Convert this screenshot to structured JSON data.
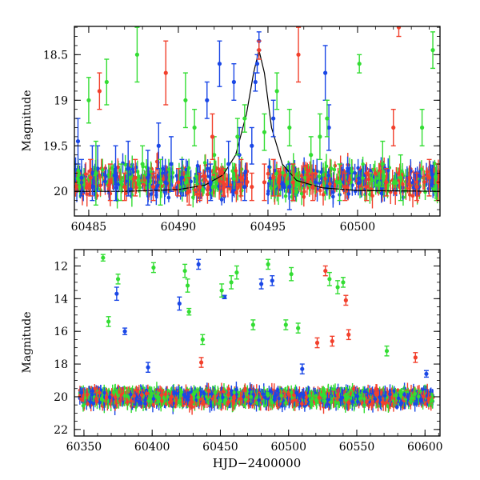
{
  "chart_data": [
    {
      "type": "scatter",
      "panel": "top",
      "title": "",
      "xlabel": "",
      "ylabel": "Magnitude",
      "xlim": [
        60484.2,
        60504.6
      ],
      "ylim": [
        20.27,
        18.19
      ],
      "y_inverted": true,
      "grid": false,
      "legend": "none",
      "x_ticks": [
        60485,
        60490,
        60495,
        60500
      ],
      "x_tick_labels": [
        "60485",
        "60490",
        "60495",
        "60500"
      ],
      "y_ticks": [
        18.5,
        19,
        19.5,
        20
      ],
      "y_tick_labels": [
        "18.5",
        "19",
        "19.5",
        "20"
      ],
      "series": [
        {
          "color": "#1a47e6",
          "points": [
            {
              "x": 60484.4,
              "y": 19.45,
              "err": 0.25
            },
            {
              "x": 60484.6,
              "y": 19.85,
              "err": 0.2
            },
            {
              "x": 60485.2,
              "y": 19.8,
              "err": 0.3
            },
            {
              "x": 60485.5,
              "y": 19.75,
              "err": 0.25
            },
            {
              "x": 60486.5,
              "y": 19.8,
              "err": 0.3
            },
            {
              "x": 60487.2,
              "y": 19.75,
              "err": 0.3
            },
            {
              "x": 60488.3,
              "y": 19.85,
              "err": 0.3
            },
            {
              "x": 60488.9,
              "y": 19.5,
              "err": 0.25
            },
            {
              "x": 60489.6,
              "y": 19.7,
              "err": 0.3
            },
            {
              "x": 60490.2,
              "y": 19.85,
              "err": 0.2
            },
            {
              "x": 60491.6,
              "y": 19.0,
              "err": 0.2
            },
            {
              "x": 60491.8,
              "y": 19.9,
              "err": 0.2
            },
            {
              "x": 60492.3,
              "y": 18.6,
              "err": 0.25
            },
            {
              "x": 60492.8,
              "y": 19.7,
              "err": 0.25
            },
            {
              "x": 60493.1,
              "y": 18.8,
              "err": 0.2
            },
            {
              "x": 60493.4,
              "y": 19.6,
              "err": 0.3
            },
            {
              "x": 60493.7,
              "y": 19.95,
              "err": 0.15
            },
            {
              "x": 60494.1,
              "y": 19.5,
              "err": 0.2
            },
            {
              "x": 60494.3,
              "y": 18.8,
              "err": 0.1
            },
            {
              "x": 60494.4,
              "y": 18.6,
              "err": 0.1
            },
            {
              "x": 60494.5,
              "y": 18.35,
              "err": 0.1
            },
            {
              "x": 60495.3,
              "y": 19.2,
              "err": 0.2
            },
            {
              "x": 60496.2,
              "y": 19.95,
              "err": 0.25
            },
            {
              "x": 60498.2,
              "y": 18.7,
              "err": 0.3
            },
            {
              "x": 60498.4,
              "y": 19.3,
              "err": 0.25
            }
          ]
        },
        {
          "color": "#33dd33",
          "points": [
            {
              "x": 60485.0,
              "y": 19.0,
              "err": 0.25
            },
            {
              "x": 60485.4,
              "y": 19.8,
              "err": 0.35
            },
            {
              "x": 60486.0,
              "y": 18.8,
              "err": 0.25
            },
            {
              "x": 60486.8,
              "y": 19.9,
              "err": 0.2
            },
            {
              "x": 60487.7,
              "y": 18.5,
              "err": 0.3
            },
            {
              "x": 60488.0,
              "y": 19.7,
              "err": 0.2
            },
            {
              "x": 60489.0,
              "y": 19.9,
              "err": 0.25
            },
            {
              "x": 60490.4,
              "y": 19.0,
              "err": 0.3
            },
            {
              "x": 60490.9,
              "y": 19.3,
              "err": 0.2
            },
            {
              "x": 60492.0,
              "y": 19.6,
              "err": 0.2
            },
            {
              "x": 60493.3,
              "y": 19.4,
              "err": 0.2
            },
            {
              "x": 60493.7,
              "y": 19.2,
              "err": 0.15
            },
            {
              "x": 60494.8,
              "y": 19.35,
              "err": 0.2
            },
            {
              "x": 60495.5,
              "y": 18.9,
              "err": 0.2
            },
            {
              "x": 60496.2,
              "y": 19.3,
              "err": 0.2
            },
            {
              "x": 60497.4,
              "y": 19.6,
              "err": 0.2
            },
            {
              "x": 60497.9,
              "y": 19.4,
              "err": 0.25
            },
            {
              "x": 60498.3,
              "y": 19.2,
              "err": 0.2
            },
            {
              "x": 60499.0,
              "y": 19.9,
              "err": 0.2
            },
            {
              "x": 60500.1,
              "y": 18.6,
              "err": 0.1
            },
            {
              "x": 60501.4,
              "y": 19.7,
              "err": 0.25
            },
            {
              "x": 60502.4,
              "y": 19.85,
              "err": 0.25
            },
            {
              "x": 60503.6,
              "y": 19.3,
              "err": 0.2
            },
            {
              "x": 60504.2,
              "y": 18.45,
              "err": 0.2
            },
            {
              "x": 60504.4,
              "y": 19.9,
              "err": 0.2
            }
          ]
        },
        {
          "color": "#f2402c",
          "points": [
            {
              "x": 60485.1,
              "y": 19.85,
              "err": 0.2
            },
            {
              "x": 60485.6,
              "y": 18.9,
              "err": 0.2
            },
            {
              "x": 60486.2,
              "y": 19.9,
              "err": 0.2
            },
            {
              "x": 60487.0,
              "y": 19.95,
              "err": 0.15
            },
            {
              "x": 60487.6,
              "y": 19.85,
              "err": 0.2
            },
            {
              "x": 60488.6,
              "y": 19.95,
              "err": 0.15
            },
            {
              "x": 60489.3,
              "y": 18.7,
              "err": 0.35
            },
            {
              "x": 60490.0,
              "y": 19.9,
              "err": 0.15
            },
            {
              "x": 60490.6,
              "y": 20.0,
              "err": 0.15
            },
            {
              "x": 60491.2,
              "y": 19.95,
              "err": 0.15
            },
            {
              "x": 60491.9,
              "y": 19.4,
              "err": 0.25
            },
            {
              "x": 60492.5,
              "y": 19.9,
              "err": 0.15
            },
            {
              "x": 60493.5,
              "y": 19.85,
              "err": 0.2
            },
            {
              "x": 60494.1,
              "y": 19.95,
              "err": 0.15
            },
            {
              "x": 60494.5,
              "y": 18.45,
              "err": 0.1
            },
            {
              "x": 60494.8,
              "y": 19.9,
              "err": 0.2
            },
            {
              "x": 60495.3,
              "y": 19.85,
              "err": 0.2
            },
            {
              "x": 60495.6,
              "y": 19.9,
              "err": 0.15
            },
            {
              "x": 60496.4,
              "y": 19.9,
              "err": 0.2
            },
            {
              "x": 60496.7,
              "y": 18.5,
              "err": 0.3
            },
            {
              "x": 60497.5,
              "y": 19.95,
              "err": 0.15
            },
            {
              "x": 60499.3,
              "y": 19.95,
              "err": 0.15
            },
            {
              "x": 60500.5,
              "y": 19.95,
              "err": 0.15
            },
            {
              "x": 60501.6,
              "y": 19.9,
              "err": 0.15
            },
            {
              "x": 60502.0,
              "y": 19.3,
              "err": 0.2
            },
            {
              "x": 60502.3,
              "y": 18.2,
              "err": 0.1
            },
            {
              "x": 60503.3,
              "y": 19.95,
              "err": 0.15
            },
            {
              "x": 60504.0,
              "y": 19.85,
              "err": 0.2
            },
            {
              "x": 60504.5,
              "y": 19.9,
              "err": 0.2
            }
          ]
        }
      ],
      "model_curve": {
        "color": "#000000",
        "x": [
          60484.2,
          60487.0,
          60490.0,
          60491.5,
          60492.5,
          60493.2,
          60493.8,
          60494.2,
          60494.5,
          60494.8,
          60495.2,
          60495.8,
          60496.6,
          60498.0,
          60500.0,
          60504.6
        ],
        "y": [
          20.0,
          20.0,
          19.98,
          19.93,
          19.82,
          19.6,
          19.15,
          18.7,
          18.45,
          18.7,
          19.3,
          19.7,
          19.88,
          19.96,
          19.99,
          20.0
        ]
      }
    },
    {
      "type": "scatter",
      "panel": "bottom",
      "title": "",
      "xlabel": "HJD−2400000",
      "ylabel": "Magnitude",
      "xlim": [
        60343,
        60611
      ],
      "ylim": [
        22.4,
        11.0
      ],
      "y_inverted": true,
      "grid": false,
      "legend": "none",
      "x_ticks": [
        60350,
        60400,
        60450,
        60500,
        60550,
        60600
      ],
      "x_tick_labels": [
        "60350",
        "60400",
        "60450",
        "60500",
        "60550",
        "60600"
      ],
      "y_ticks": [
        12,
        14,
        16,
        18,
        20,
        22
      ],
      "y_tick_labels": [
        "12",
        "14",
        "16",
        "18",
        "20",
        "22"
      ],
      "baseline_mag": 20.05,
      "series": [
        {
          "color": "#1a47e6",
          "points": [
            {
              "x": 60374,
              "y": 13.7,
              "err": 0.4
            },
            {
              "x": 60380,
              "y": 16.0,
              "err": 0.2
            },
            {
              "x": 60397,
              "y": 18.2,
              "err": 0.3
            },
            {
              "x": 60420,
              "y": 14.3,
              "err": 0.4
            },
            {
              "x": 60434,
              "y": 11.9,
              "err": 0.3
            },
            {
              "x": 60453,
              "y": 13.9,
              "err": 0.1
            },
            {
              "x": 60480,
              "y": 13.1,
              "err": 0.3
            },
            {
              "x": 60488,
              "y": 12.9,
              "err": 0.3
            },
            {
              "x": 60510,
              "y": 18.3,
              "err": 0.3
            },
            {
              "x": 60601,
              "y": 18.6,
              "err": 0.2
            }
          ]
        },
        {
          "color": "#33dd33",
          "points": [
            {
              "x": 60364,
              "y": 11.5,
              "err": 0.2
            },
            {
              "x": 60368,
              "y": 15.4,
              "err": 0.3
            },
            {
              "x": 60375,
              "y": 12.8,
              "err": 0.3
            },
            {
              "x": 60401,
              "y": 12.1,
              "err": 0.3
            },
            {
              "x": 60424,
              "y": 12.3,
              "err": 0.4
            },
            {
              "x": 60426,
              "y": 13.2,
              "err": 0.4
            },
            {
              "x": 60427,
              "y": 14.8,
              "err": 0.2
            },
            {
              "x": 60437,
              "y": 16.5,
              "err": 0.3
            },
            {
              "x": 60451,
              "y": 13.5,
              "err": 0.4
            },
            {
              "x": 60458,
              "y": 13.0,
              "err": 0.4
            },
            {
              "x": 60462,
              "y": 12.4,
              "err": 0.4
            },
            {
              "x": 60474,
              "y": 15.6,
              "err": 0.3
            },
            {
              "x": 60485,
              "y": 11.9,
              "err": 0.3
            },
            {
              "x": 60498,
              "y": 15.6,
              "err": 0.3
            },
            {
              "x": 60502,
              "y": 12.5,
              "err": 0.4
            },
            {
              "x": 60507,
              "y": 15.8,
              "err": 0.3
            },
            {
              "x": 60530,
              "y": 12.8,
              "err": 0.4
            },
            {
              "x": 60536,
              "y": 13.3,
              "err": 0.4
            },
            {
              "x": 60540,
              "y": 13.0,
              "err": 0.3
            },
            {
              "x": 60572,
              "y": 17.2,
              "err": 0.3
            }
          ]
        },
        {
          "color": "#f2402c",
          "points": [
            {
              "x": 60436,
              "y": 17.9,
              "err": 0.3
            },
            {
              "x": 60521,
              "y": 16.7,
              "err": 0.3
            },
            {
              "x": 60527,
              "y": 12.3,
              "err": 0.3
            },
            {
              "x": 60532,
              "y": 16.6,
              "err": 0.3
            },
            {
              "x": 60542,
              "y": 14.1,
              "err": 0.3
            },
            {
              "x": 60544,
              "y": 16.2,
              "err": 0.3
            },
            {
              "x": 60593,
              "y": 17.6,
              "err": 0.3
            }
          ]
        }
      ]
    }
  ]
}
